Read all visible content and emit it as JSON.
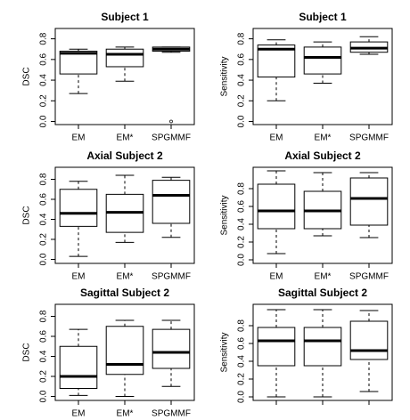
{
  "chart_data": [
    {
      "type": "box",
      "title": "Subject 1",
      "ylabel": "DSC",
      "categories": [
        "EM",
        "EM*",
        "SPGMMF"
      ],
      "ylim": [
        -0.03,
        0.9
      ],
      "yticks": [
        {
          "value": 0,
          "label": "0.0"
        },
        0.2,
        0.4,
        0.6,
        0.8
      ],
      "boxes": [
        {
          "min": 0.27,
          "q1": 0.46,
          "median": 0.66,
          "q3": 0.68,
          "max": 0.7,
          "outliers": []
        },
        {
          "min": 0.39,
          "q1": 0.53,
          "median": 0.65,
          "q3": 0.7,
          "max": 0.72,
          "outliers": []
        },
        {
          "min": 0.67,
          "q1": 0.68,
          "median": 0.7,
          "q3": 0.72,
          "max": 0.72,
          "outliers": [
            0.0
          ]
        }
      ]
    },
    {
      "type": "box",
      "title": "Subject 1",
      "ylabel": "Sensitivity",
      "categories": [
        "EM",
        "EM*",
        "SPGMMF"
      ],
      "ylim": [
        -0.03,
        0.9
      ],
      "yticks": [
        {
          "value": 0,
          "label": "0.0"
        },
        0.2,
        0.4,
        0.6,
        0.8
      ],
      "boxes": [
        {
          "min": 0.2,
          "q1": 0.43,
          "median": 0.7,
          "q3": 0.74,
          "max": 0.79,
          "outliers": []
        },
        {
          "min": 0.37,
          "q1": 0.46,
          "median": 0.62,
          "q3": 0.72,
          "max": 0.77,
          "outliers": []
        },
        {
          "min": 0.65,
          "q1": 0.67,
          "median": 0.71,
          "q3": 0.77,
          "max": 0.82,
          "outliers": []
        }
      ]
    },
    {
      "type": "box",
      "title": "Axial Subject 2",
      "ylabel": "DSC",
      "categories": [
        "EM",
        "EM*",
        "SPGMMF"
      ],
      "ylim": [
        -0.04,
        0.92
      ],
      "yticks": [
        {
          "value": 0,
          "label": "0.0"
        },
        0.2,
        0.4,
        0.6,
        0.8
      ],
      "boxes": [
        {
          "min": 0.03,
          "q1": 0.33,
          "median": 0.46,
          "q3": 0.7,
          "max": 0.78,
          "outliers": []
        },
        {
          "min": 0.17,
          "q1": 0.27,
          "median": 0.47,
          "q3": 0.65,
          "max": 0.84,
          "outliers": []
        },
        {
          "min": 0.22,
          "q1": 0.36,
          "median": 0.64,
          "q3": 0.79,
          "max": 0.82,
          "outliers": []
        }
      ]
    },
    {
      "type": "box",
      "title": "Axial Subject 2",
      "ylabel": "Sensitivity",
      "categories": [
        "EM",
        "EM*",
        "SPGMMF"
      ],
      "ylim": [
        -0.04,
        1.04
      ],
      "yticks": [
        {
          "value": 0,
          "label": "0.0"
        },
        0.2,
        0.4,
        0.6,
        0.8
      ],
      "boxes": [
        {
          "min": 0.07,
          "q1": 0.35,
          "median": 0.55,
          "q3": 0.85,
          "max": 1.0,
          "outliers": []
        },
        {
          "min": 0.27,
          "q1": 0.35,
          "median": 0.55,
          "q3": 0.77,
          "max": 0.98,
          "outliers": []
        },
        {
          "min": 0.25,
          "q1": 0.39,
          "median": 0.69,
          "q3": 0.92,
          "max": 0.98,
          "outliers": []
        }
      ]
    },
    {
      "type": "box",
      "title": "Sagittal Subject 2",
      "ylabel": "DSC",
      "categories": [
        "EM",
        "EM*",
        "SPGMMF"
      ],
      "ylim": [
        -0.04,
        0.92
      ],
      "yticks": [
        {
          "value": 0,
          "label": "0.0"
        },
        0.2,
        0.4,
        0.6,
        0.8
      ],
      "boxes": [
        {
          "min": 0.01,
          "q1": 0.08,
          "median": 0.2,
          "q3": 0.5,
          "max": 0.67,
          "outliers": []
        },
        {
          "min": 0.0,
          "q1": 0.22,
          "median": 0.32,
          "q3": 0.7,
          "max": 0.76,
          "outliers": []
        },
        {
          "min": 0.1,
          "q1": 0.28,
          "median": 0.44,
          "q3": 0.67,
          "max": 0.76,
          "outliers": []
        }
      ]
    },
    {
      "type": "box",
      "title": "Sagittal Subject 2",
      "ylabel": "Sensitivity",
      "categories": [
        null,
        null,
        null
      ],
      "ylim": [
        -0.04,
        1.04
      ],
      "yticks": [
        {
          "value": 0,
          "label": "0.0"
        },
        0.2,
        0.4,
        0.6,
        0.8
      ],
      "boxes": [
        {
          "min": 0.0,
          "q1": 0.35,
          "median": 0.63,
          "q3": 0.78,
          "max": 0.98,
          "outliers": []
        },
        {
          "min": 0.0,
          "q1": 0.35,
          "median": 0.63,
          "q3": 0.78,
          "max": 0.98,
          "outliers": []
        },
        {
          "min": 0.06,
          "q1": 0.42,
          "median": 0.52,
          "q3": 0.85,
          "max": 0.97,
          "outliers": []
        }
      ]
    }
  ]
}
